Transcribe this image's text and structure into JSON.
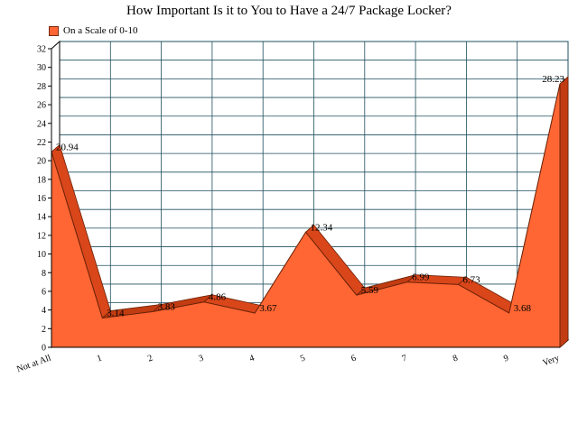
{
  "chart_data": {
    "type": "area",
    "title": "How Important Is it to You to Have a 24/7 Package Locker?",
    "categories": [
      "Not at All",
      "1",
      "2",
      "3",
      "4",
      "5",
      "6",
      "7",
      "8",
      "9",
      "Very"
    ],
    "series": [
      {
        "name": "On a Scale of 0-10",
        "values": [
          20.94,
          3.14,
          3.83,
          4.86,
          3.67,
          12.34,
          5.59,
          6.99,
          6.73,
          3.68,
          28.23
        ],
        "value_labels": [
          "20.94",
          "3.14",
          "3.83",
          "4.86",
          "3.67",
          "12.34",
          "5.59",
          "6.99",
          "6.73",
          "3.68",
          "28.23"
        ]
      }
    ],
    "xlabel": "",
    "ylabel": "",
    "ylim": [
      0,
      32
    ],
    "yticks": [
      "0",
      "2",
      "4",
      "6",
      "8",
      "10",
      "12",
      "14",
      "16",
      "18",
      "20",
      "22",
      "24",
      "26",
      "28",
      "30",
      "32"
    ],
    "grid": true,
    "legend": "top-left",
    "colors": {
      "area_front": "#FF6633",
      "area_top": "#D9461A",
      "area_side": "#C23C12",
      "outline": "#6B2208",
      "grid": "#1F4F5F"
    }
  }
}
